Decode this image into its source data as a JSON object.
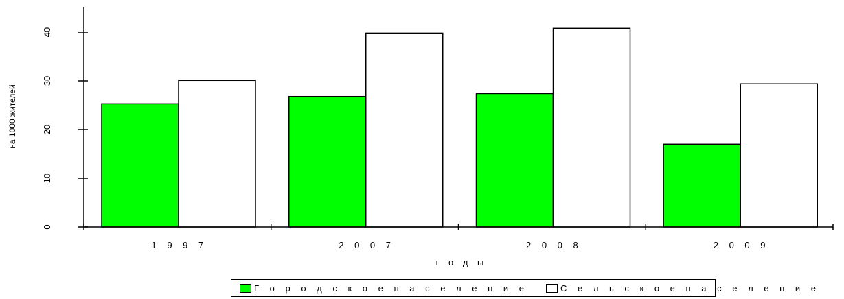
{
  "chart_data": {
    "type": "bar",
    "title": "",
    "xlabel": "г о д ы",
    "ylabel": "на 1000 жителей",
    "categories": [
      "1 9 9 7",
      "2 0 0 7",
      "2 0 0 8",
      "2 0 0 9"
    ],
    "ylim": [
      0,
      45
    ],
    "yticks": [
      "0",
      "10",
      "20",
      "30",
      "40"
    ],
    "grid": false,
    "legend_position": "bottom",
    "series": [
      {
        "name": "Г о р о д с к о е   н а с е л е н и е",
        "color": "#00ff00",
        "values": [
          25.3,
          26.8,
          27.4,
          17.0
        ]
      },
      {
        "name": "С е л ь с к о е   н а с е л е н и е",
        "color": "#ffffff",
        "values": [
          30.1,
          39.8,
          40.8,
          29.4
        ]
      }
    ]
  }
}
